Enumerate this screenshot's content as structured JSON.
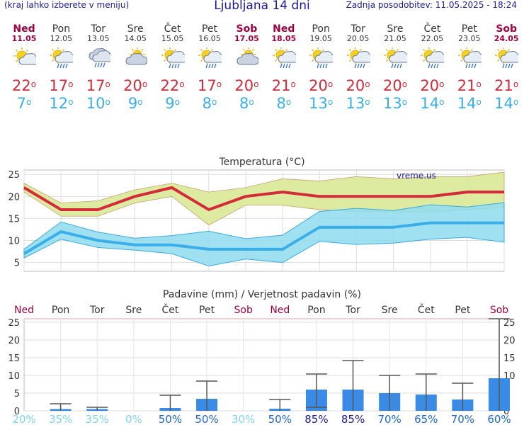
{
  "header": {
    "left": "(kraj lahko izberete v meniju)",
    "title": "Ljubljana 14 dni",
    "updated": "Zadnja posodobitev: 11.05.2025 - 18:24"
  },
  "days": [
    {
      "name": "Ned",
      "date": "11.05",
      "hi": "22",
      "lo": "7",
      "icon": "sun-cloud-icon",
      "weekend": true
    },
    {
      "name": "Pon",
      "date": "12.05",
      "hi": "17",
      "lo": "12",
      "icon": "sun-cloud-rain-icon",
      "weekend": false
    },
    {
      "name": "Tor",
      "date": "13.05",
      "hi": "17",
      "lo": "10",
      "icon": "cloud-rain-icon",
      "weekend": false
    },
    {
      "name": "Sre",
      "date": "14.05",
      "hi": "20",
      "lo": "9",
      "icon": "partly-cloudy-icon",
      "weekend": false
    },
    {
      "name": "Čet",
      "date": "15.05",
      "hi": "22",
      "lo": "9",
      "icon": "sun-cloud-rain-icon",
      "weekend": false
    },
    {
      "name": "Pet",
      "date": "16.05",
      "hi": "17",
      "lo": "8",
      "icon": "sun-cloud-rain-icon",
      "weekend": false
    },
    {
      "name": "Sob",
      "date": "17.05",
      "hi": "20",
      "lo": "8",
      "icon": "partly-cloudy-icon",
      "weekend": true
    },
    {
      "name": "Ned",
      "date": "18.05",
      "hi": "21",
      "lo": "8",
      "icon": "sun-cloud-rain-icon",
      "weekend": true
    },
    {
      "name": "Pon",
      "date": "19.05",
      "hi": "20",
      "lo": "13",
      "icon": "sun-cloud-rain-icon",
      "weekend": false
    },
    {
      "name": "Tor",
      "date": "20.05",
      "hi": "20",
      "lo": "13",
      "icon": "sun-cloud-rain-icon",
      "weekend": false
    },
    {
      "name": "Sre",
      "date": "21.05",
      "hi": "20",
      "lo": "13",
      "icon": "sun-cloud-rain-icon",
      "weekend": false
    },
    {
      "name": "Čet",
      "date": "22.05",
      "hi": "20",
      "lo": "14",
      "icon": "sun-cloud-rain-icon",
      "weekend": false
    },
    {
      "name": "Pet",
      "date": "23.05",
      "hi": "21",
      "lo": "14",
      "icon": "sun-cloud-rain-icon",
      "weekend": false
    },
    {
      "name": "Sob",
      "date": "24.05",
      "hi": "21",
      "lo": "14",
      "icon": "sun-cloud-rain-icon",
      "weekend": true
    }
  ],
  "colors": {
    "hi": "#d42a3a",
    "lo": "#3aaee8",
    "weekend": "#a00040",
    "hi_band": "#dceba0",
    "lo_band": "#8fdcef",
    "overlap": "#8cd48f",
    "bar": "#3a8be6",
    "prob": "#1a1aa0",
    "prob_low": "#7fd4f0"
  },
  "chart_data": [
    {
      "type": "area",
      "title": "Temperatura (°C)",
      "watermark": "vreme.us",
      "ylim": [
        3,
        26
      ],
      "yticks": [
        5,
        10,
        15,
        20,
        25
      ],
      "x": [
        1,
        2,
        3,
        4,
        5,
        6,
        7,
        8,
        9,
        10,
        11,
        12,
        13,
        14
      ],
      "series": [
        {
          "name": "max",
          "values": [
            22,
            17,
            17,
            20,
            22,
            17,
            20,
            21,
            20,
            20,
            20,
            20,
            21,
            21
          ],
          "band_low": [
            21,
            15.5,
            15.5,
            18.5,
            20,
            13.5,
            18,
            18,
            17,
            16.5,
            16.5,
            16.5,
            17,
            17.5
          ],
          "band_high": [
            23,
            18.5,
            19,
            21.5,
            23,
            21,
            22,
            24,
            23.5,
            24.5,
            24,
            24.5,
            24.5,
            25.5
          ]
        },
        {
          "name": "min",
          "values": [
            7,
            12,
            10,
            9,
            9,
            8,
            8,
            8,
            13,
            13,
            13,
            14,
            14,
            14
          ],
          "band_low": [
            6,
            10.3,
            8.4,
            7.8,
            7,
            4.2,
            5.8,
            5,
            9.8,
            9.1,
            9.4,
            10.3,
            10.7,
            9.6
          ],
          "band_high": [
            8,
            14.2,
            11.9,
            10.5,
            11.1,
            12.1,
            10.4,
            11.2,
            16.6,
            17.3,
            16.8,
            18.1,
            17.6,
            18.6
          ]
        }
      ]
    },
    {
      "type": "bar",
      "title": "Padavine (mm) / Verjetnost padavin (%)",
      "ylim": [
        0,
        26
      ],
      "yticks": [
        0,
        5,
        10,
        15,
        20,
        25
      ],
      "categories": [
        "Ned",
        "Pon",
        "Tor",
        "Sre",
        "Čet",
        "Pet",
        "Sob",
        "Ned",
        "Pon",
        "Tor",
        "Sre",
        "Čet",
        "Pet",
        "Sob"
      ],
      "weekend": [
        true,
        false,
        false,
        false,
        false,
        false,
        true,
        true,
        false,
        false,
        false,
        false,
        false,
        true
      ],
      "values": [
        0,
        0.5,
        0.5,
        0,
        0.8,
        3.4,
        0,
        0.6,
        6,
        6,
        5,
        4.6,
        3.2,
        9.2
      ],
      "err_low": [
        0,
        0,
        0,
        0,
        0,
        0,
        0,
        0,
        1,
        0,
        0,
        0,
        0,
        0
      ],
      "err_high": [
        0,
        2,
        1,
        0,
        4.4,
        8.4,
        0,
        3.2,
        10.4,
        14.2,
        10,
        10.4,
        7.8,
        26
      ],
      "probability": [
        "20%",
        "35%",
        "35%",
        "0%",
        "50%",
        "50%",
        "30%",
        "50%",
        "85%",
        "85%",
        "70%",
        "65%",
        "70%",
        "60%"
      ]
    }
  ]
}
